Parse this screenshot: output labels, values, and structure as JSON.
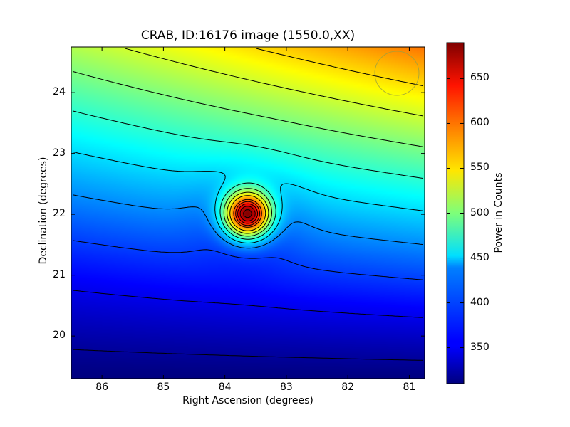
{
  "chart_data": {
    "type": "heatmap",
    "title": "CRAB, ID:16176 image (1550.0,XX)",
    "xlabel": "Right Ascension (degrees)",
    "ylabel": "Declination (degrees)",
    "colorbar_label": "Power in Counts",
    "colormap": "jet",
    "x_reversed": true,
    "xlim": [
      86.5,
      80.75
    ],
    "ylim": [
      19.3,
      24.75
    ],
    "clim": [
      310,
      690
    ],
    "x_ticks": [
      "86",
      "85",
      "84",
      "83",
      "82",
      "81"
    ],
    "y_ticks": [
      "20",
      "21",
      "22",
      "23",
      "24"
    ],
    "colorbar_ticks": [
      "350",
      "400",
      "450",
      "500",
      "550",
      "600",
      "650"
    ],
    "contours": true,
    "source": {
      "name": "CRAB",
      "ra": 83.63,
      "dec": 22.01,
      "peak": 690
    },
    "background": {
      "min": 310,
      "max": 600
    },
    "contour_color": "#000000"
  }
}
